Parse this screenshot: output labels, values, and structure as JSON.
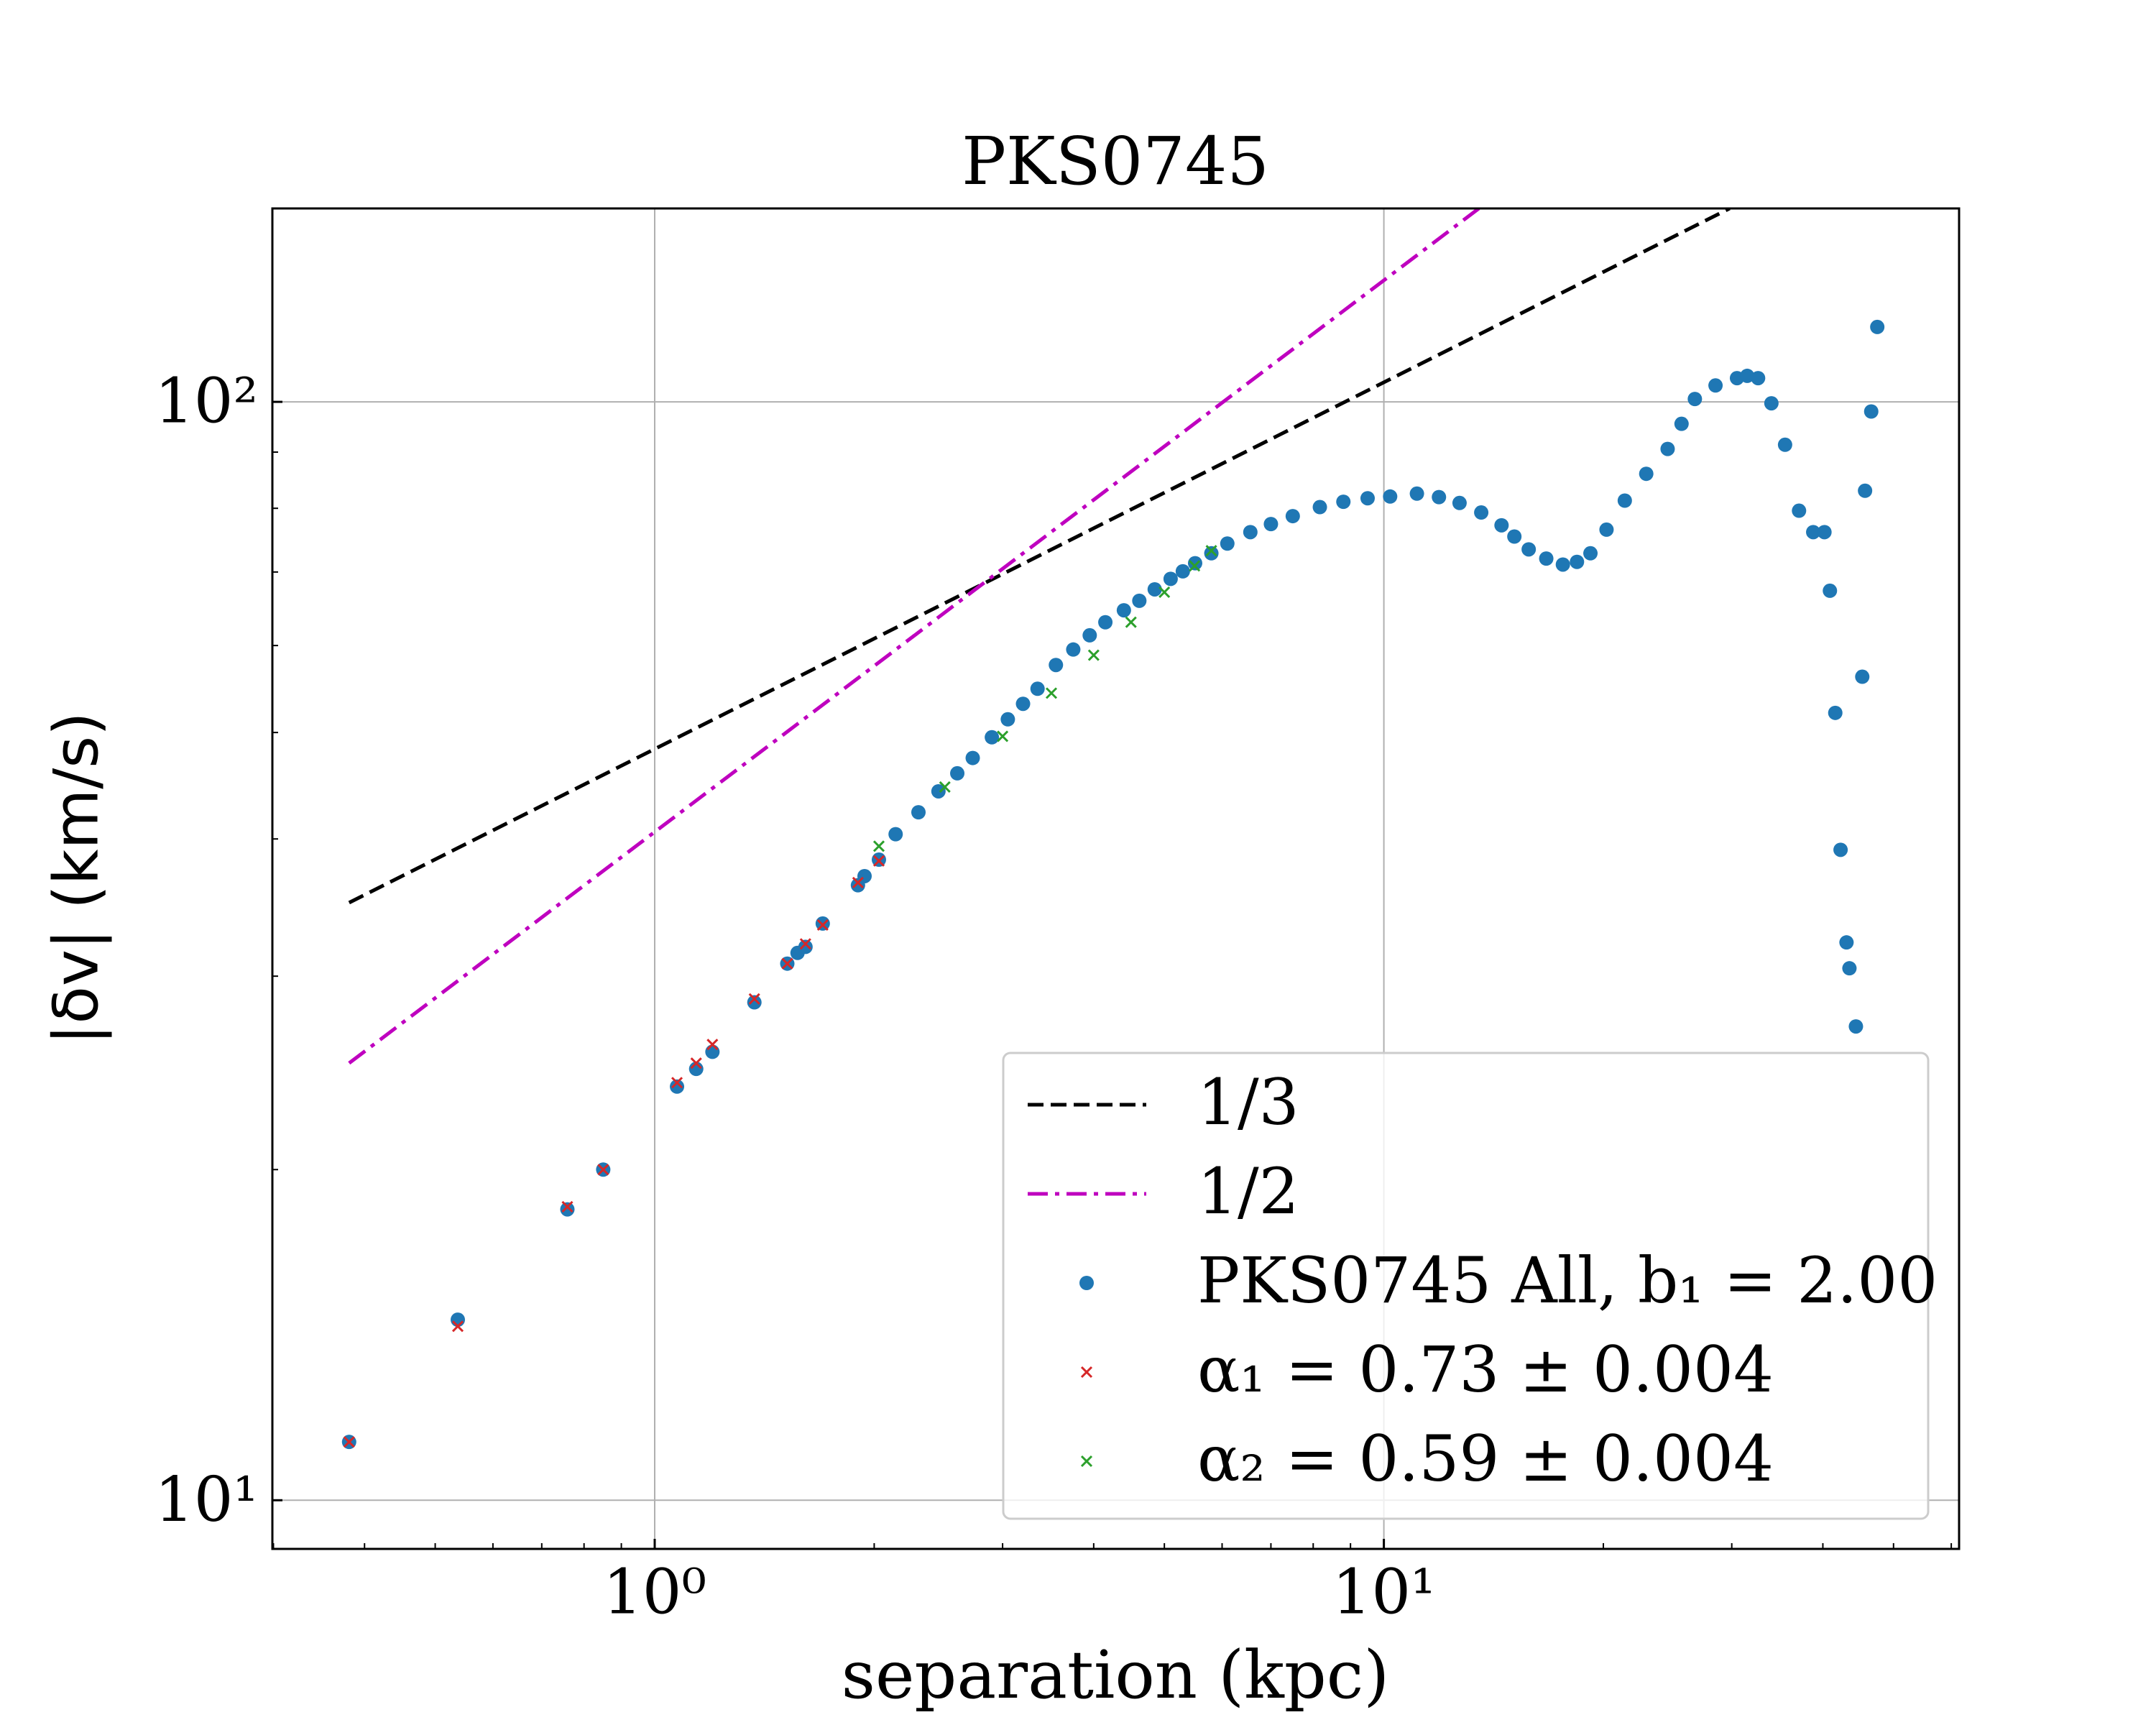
{
  "chart_data": {
    "type": "scatter",
    "title": "PKS0745",
    "xlabel": "separation (kpc)",
    "ylabel": "|δv| (km/s)",
    "xscale": "log",
    "yscale": "log",
    "xlim": [
      0.299,
      61.5
    ],
    "ylim": [
      9.03,
      150
    ],
    "xticks": [
      {
        "value": 1,
        "label": "10⁰"
      },
      {
        "value": 10,
        "label": "10¹"
      }
    ],
    "yticks": [
      {
        "value": 10,
        "label": "10¹"
      },
      {
        "value": 100,
        "label": "10²"
      }
    ],
    "xminorticks": [
      0.3,
      0.4,
      0.5,
      0.6,
      0.7,
      0.8,
      0.9,
      2,
      3,
      4,
      5,
      6,
      7,
      8,
      9,
      20,
      30,
      40,
      50,
      60
    ],
    "yminorticks": [
      20,
      30,
      40,
      50,
      60,
      70,
      80,
      90
    ],
    "grid": true,
    "legend": "lower right",
    "series": [
      {
        "name": "1/3",
        "color": "#000000",
        "style": "dashed",
        "x": [
          0.381,
          29.8
        ],
        "values": [
          35.0,
          150
        ]
      },
      {
        "name": "1/2",
        "color": "#bf00bf",
        "style": "dashdot",
        "x": [
          0.381,
          13.5
        ],
        "values": [
          25.0,
          150
        ]
      },
      {
        "name": "PKS0745 All, b₁ = 2.00",
        "color": "#1f77b4",
        "style": "dot",
        "x": [
          0.381,
          0.537,
          0.759,
          0.85,
          1.073,
          1.14,
          1.2,
          1.37,
          1.52,
          1.57,
          1.61,
          1.7,
          1.9,
          1.94,
          2.03,
          2.14,
          2.3,
          2.45,
          2.6,
          2.73,
          2.9,
          3.05,
          3.2,
          3.35,
          3.55,
          3.75,
          3.95,
          4.15,
          4.4,
          4.62,
          4.85,
          5.1,
          5.3,
          5.51,
          5.8,
          6.1,
          6.56,
          7.0,
          7.5,
          8.17,
          8.8,
          9.5,
          10.2,
          11.1,
          11.9,
          12.7,
          13.6,
          14.5,
          15.1,
          15.8,
          16.7,
          17.6,
          18.4,
          19.2,
          20.2,
          21.4,
          22.9,
          24.5,
          25.6,
          26.7,
          28.5,
          30.5,
          31.5,
          32.6,
          34.0,
          35.5,
          37.1,
          38.8,
          40.2,
          40.9,
          41.6,
          42.3,
          43.1,
          43.5,
          44.4,
          45.3,
          45.7,
          46.6,
          47.5
        ],
        "values": [
          11.3,
          14.6,
          18.4,
          20.0,
          23.8,
          24.7,
          25.6,
          28.4,
          30.8,
          31.5,
          31.9,
          33.5,
          36.3,
          37.0,
          38.3,
          40.4,
          42.3,
          44.2,
          45.9,
          47.4,
          49.5,
          51.4,
          53.1,
          54.8,
          57.6,
          59.5,
          61.3,
          63.0,
          64.6,
          65.9,
          67.5,
          69.0,
          70.1,
          71.3,
          72.8,
          74.3,
          76.1,
          77.4,
          78.7,
          80.2,
          81.1,
          81.7,
          82.0,
          82.5,
          81.9,
          80.9,
          79.3,
          77.2,
          75.4,
          73.4,
          72.0,
          71.1,
          71.5,
          72.8,
          76.5,
          81.3,
          86.0,
          90.6,
          95.5,
          100.6,
          103.5,
          105.1,
          105.6,
          105.1,
          99.7,
          91.4,
          79.6,
          76.1,
          76.1,
          67.3,
          52.1,
          39.1,
          32.2,
          30.5,
          27.0,
          56.2,
          83.0,
          98.0,
          117.0
        ]
      },
      {
        "name": "α₁ = 0.73 ± 0.004",
        "color": "#d62728",
        "style": "x",
        "x": [
          0.381,
          0.537,
          0.759,
          0.85,
          1.073,
          1.14,
          1.2,
          1.37,
          1.52,
          1.61,
          1.7,
          1.9,
          2.03
        ],
        "values": [
          11.3,
          14.4,
          18.5,
          20.0,
          24.0,
          25.0,
          26.0,
          28.6,
          30.8,
          32.1,
          33.4,
          36.5,
          38.2
        ]
      },
      {
        "name": "α₂ = 0.59 ± 0.004",
        "color": "#2ca02c",
        "style": "x",
        "x": [
          2.03,
          2.5,
          3.0,
          3.5,
          4.0,
          4.5,
          5.0,
          5.5,
          5.8
        ],
        "values": [
          39.4,
          44.6,
          49.6,
          54.3,
          58.8,
          63.0,
          67.1,
          70.9,
          73.2
        ]
      }
    ]
  }
}
